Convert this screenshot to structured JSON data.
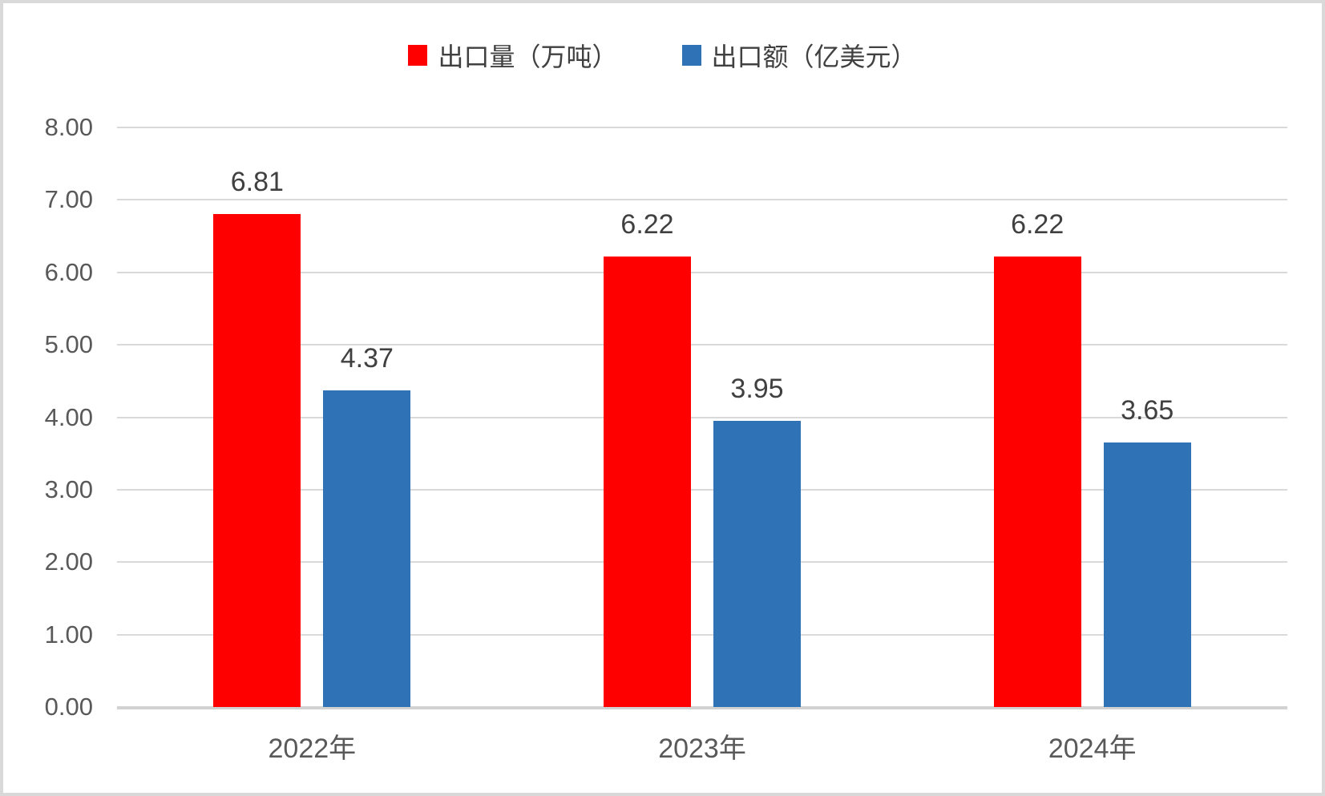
{
  "frame": {
    "background": "#FFFFFF",
    "border_color": "#D9D9D9"
  },
  "legend": {
    "position": "top-center",
    "items": [
      {
        "label": "出口量（万吨）",
        "color": "#FF0000"
      },
      {
        "label": "出口额（亿美元）",
        "color": "#2F73B6"
      }
    ]
  },
  "chart_data": {
    "type": "bar",
    "categories": [
      "2022年",
      "2023年",
      "2024年"
    ],
    "series": [
      {
        "name": "出口量（万吨）",
        "color": "#FF0000",
        "values": [
          6.81,
          6.22,
          6.22
        ],
        "data_labels": [
          "6.81",
          "6.22",
          "6.22"
        ]
      },
      {
        "name": "出口额（亿美元）",
        "color": "#2F73B6",
        "values": [
          4.37,
          3.95,
          3.65
        ],
        "data_labels": [
          "4.37",
          "3.95",
          "3.65"
        ]
      }
    ],
    "ylim": [
      0,
      8
    ],
    "y_ticks": [
      {
        "value": 8,
        "label": "8.00"
      },
      {
        "value": 7,
        "label": "7.00"
      },
      {
        "value": 6,
        "label": "6.00"
      },
      {
        "value": 5,
        "label": "5.00"
      },
      {
        "value": 4,
        "label": "4.00"
      },
      {
        "value": 3,
        "label": "3.00"
      },
      {
        "value": 2,
        "label": "2.00"
      },
      {
        "value": 1,
        "label": "1.00"
      },
      {
        "value": 0,
        "label": "0.00"
      }
    ],
    "grid": true,
    "legend_position": "top",
    "gridline_color": "#D9D9D9",
    "axis_line_color": "#D2D2D2",
    "tick_text_color": "#595959",
    "data_label_color": "#404040",
    "category_text_color": "#595959"
  }
}
